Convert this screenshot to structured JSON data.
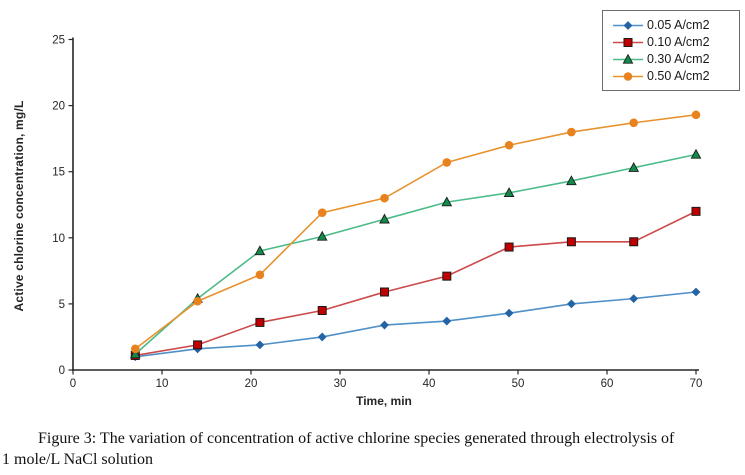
{
  "chart_data": {
    "type": "line",
    "title": "",
    "xlabel": "Time, min",
    "ylabel": "Active chlorine concentration, mg/L",
    "x": [
      7,
      14,
      21,
      28,
      35,
      42,
      49,
      56,
      63,
      70
    ],
    "xlim": [
      0,
      70
    ],
    "ylim": [
      0,
      25
    ],
    "xticks": [
      0,
      10,
      20,
      30,
      40,
      50,
      60,
      70
    ],
    "yticks": [
      0,
      5,
      10,
      15,
      20,
      25
    ],
    "grid": false,
    "legend_position": "top-right",
    "series": [
      {
        "name": "0.05 A/cm2",
        "marker": "diamond",
        "line_color": "#4f90c8",
        "marker_color": "#2463a5",
        "values": [
          1.0,
          1.6,
          1.9,
          2.5,
          3.4,
          3.7,
          4.3,
          5.0,
          5.4,
          5.9
        ]
      },
      {
        "name": "0.10 A/cm2",
        "marker": "square",
        "line_color": "#cc4a4a",
        "marker_color": "#c00000",
        "values": [
          1.1,
          1.9,
          3.6,
          4.5,
          5.9,
          7.1,
          9.3,
          9.7,
          9.7,
          12.0
        ]
      },
      {
        "name": "0.30 A/cm2",
        "marker": "triangle",
        "line_color": "#4cbb88",
        "marker_color": "#128a4a",
        "values": [
          1.2,
          5.4,
          9.0,
          10.1,
          11.4,
          12.7,
          13.4,
          14.3,
          15.3,
          16.3
        ]
      },
      {
        "name": "0.50 A/cm2",
        "marker": "circle",
        "line_color": "#e8922e",
        "marker_color": "#e8821e",
        "values": [
          1.6,
          5.2,
          7.2,
          11.9,
          13.0,
          15.7,
          17.0,
          18.0,
          18.7,
          19.3
        ]
      }
    ]
  },
  "caption": {
    "line1": "Figure 3: The variation of concentration of active chlorine species generated through electrolysis of",
    "line2": "1 mole/L NaCl solution"
  }
}
